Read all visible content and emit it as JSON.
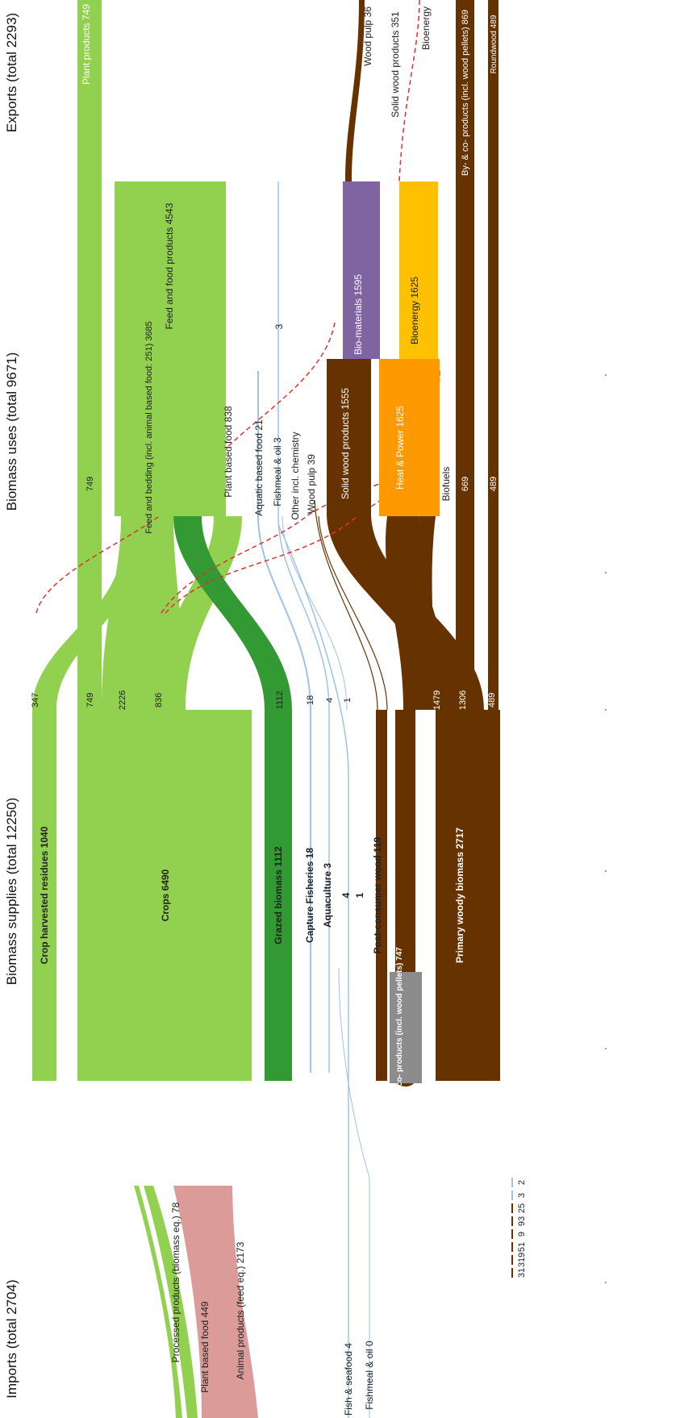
{
  "headers": {
    "imports": "Imports (total 2704)",
    "supplies": "Biomass supplies (total 12250)",
    "uses": "Biomass uses (total 9671)",
    "exports": "Exports (total 2293)"
  },
  "imports": {
    "processed": "Processed products (biomass eq.) 78",
    "plant_food": "Plant based food 449",
    "animal": "Animal products (feed eq.) 2173",
    "fish": "Fish & seafood 4",
    "fishmeal": "Fishmeal & oil 0"
  },
  "supplies": {
    "crop_residues": "Crop harvested residues 1040",
    "crops": "Crops 6490",
    "grazed": "Grazed biomass 1112",
    "capture": "Capture Fisheries 18",
    "aquaculture": "Aquaculture 3",
    "four": "4",
    "one": "1",
    "post_consumer": "Post-consumer wood 119",
    "byco": "By- & co- products (incl. wood pellets) 747",
    "primary": "Primary woody biomass 2717"
  },
  "flow_values": {
    "v347": "347",
    "v749": "749",
    "v2226": "2226",
    "v836": "836",
    "v1112": "1112",
    "v18": "18",
    "v4": "4",
    "v1": "1",
    "v669": "669",
    "v1479": "1479",
    "v1306": "1306",
    "v489": "489",
    "v749b": "749",
    "v669b": "669",
    "v489b": "489"
  },
  "uses": {
    "feed_food": "Feed and food products 4543",
    "feed_bedding": "Feed and bedding (incl. animal based food: 251) 3685",
    "plant_food": "Plant based food 838",
    "aquatic": "Aquatic based food 21",
    "fishmeal": "Fishmeal & oil 3",
    "three": "3",
    "other_chem": "Other incl. chemistry",
    "wood_pulp": "Wood pulp 39",
    "bio_materials": "Bio-materials 1595",
    "solid_wood": "Solid wood products 1555",
    "bioenergy": "Bioenergy 1625",
    "heat_power": "Heat & Power 1625",
    "biofuels": "Biofuels"
  },
  "exports": {
    "plant_products": "Plant products 749",
    "wood_pulp": "Wood pulp 36",
    "solid_wood": "Solid wood products 351",
    "bioenergy": "Bioenergy",
    "byco": "By- & co- products (incl. wood pellets) 869",
    "roundwood": "Roundwood 489"
  },
  "legend_values": [
    "2",
    "3",
    "25",
    "93",
    "9",
    "51",
    "319",
    "31"
  ],
  "colors": {
    "crop": "#92d050",
    "grazed": "#339933",
    "import_animal": "#d99694",
    "wood": "#663300",
    "bio_materials": "#8064a2",
    "bioenergy": "#ffc000",
    "heat_power": "#ff9900",
    "fish_line": "#9dc3e6",
    "dash": "#e03030"
  }
}
